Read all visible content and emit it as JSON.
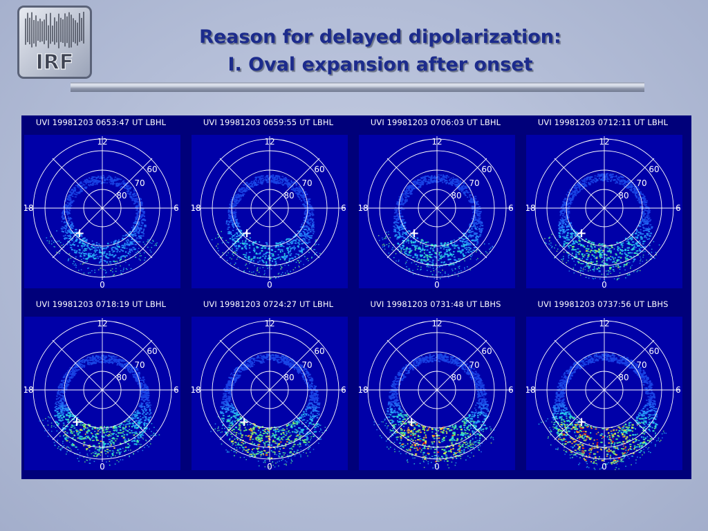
{
  "logo": {
    "text": "IRF"
  },
  "slide": {
    "title_line1": "Reason for delayed dipolarization:",
    "title_line2": "I. Oval expansion after onset"
  },
  "colors": {
    "figure_background": "#00007a",
    "plot_background": "#0000a8",
    "title": "#1c2b8c",
    "grid": "#ffffff",
    "onset_marker": "#ffffff"
  },
  "polar_axes": {
    "latitude_labels": [
      "80",
      "70",
      "60"
    ],
    "mlt_labels": [
      "12",
      "6",
      "0",
      "18"
    ]
  },
  "panels": [
    {
      "label": "UVI 19981203 0653:47 UT LBHL",
      "intensity": 0.12
    },
    {
      "label": "UVI 19981203 0659:55 UT LBHL",
      "intensity": 0.26
    },
    {
      "label": "UVI 19981203 0706:03 UT LBHL",
      "intensity": 0.32
    },
    {
      "label": "UVI 19981203 0712:11 UT LBHL",
      "intensity": 0.5
    },
    {
      "label": "UVI 19981203 0718:19 UT LBHL",
      "intensity": 0.65
    },
    {
      "label": "UVI 19981203 0724:27 UT LBHL",
      "intensity": 0.78
    },
    {
      "label": "UVI 19981203 0731:48 UT LBHS",
      "intensity": 0.88
    },
    {
      "label": "UVI 19981203 0737:56 UT LBHS",
      "intensity": 1.0
    }
  ],
  "onset_marker_symbol": "+"
}
